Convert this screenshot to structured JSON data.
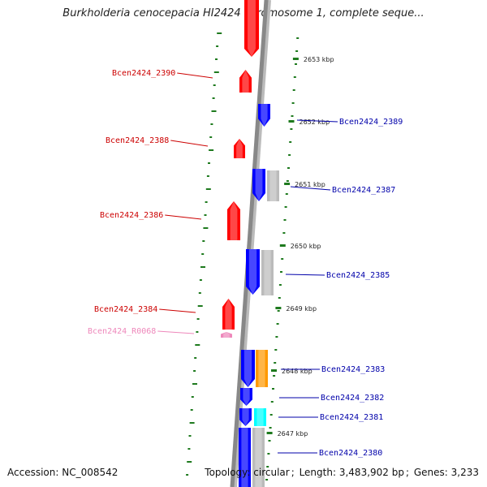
{
  "title": "Burkholderia cenocepacia HI2424 chromosome 1, complete seque...",
  "footer": {
    "accession_label": "Accession:",
    "accession": "NC_008542",
    "topology_label": "Topology:",
    "topology": "circular",
    "length_label": "Length:",
    "length": "3,483,902 bp",
    "genes_label": "Genes:",
    "genes": "3,233"
  },
  "colors": {
    "forward_gene": "#ff0000",
    "reverse_gene": "#0000ff",
    "forward_label": "#cc0000",
    "reverse_label": "#0000aa",
    "rna_feature": "#ee88bb",
    "rna_label": "#ee88bb",
    "gray_feature": "#bbbbbb",
    "orange_feature": "#ff9900",
    "cyan_feature": "#00ffff",
    "tick": "#1e7a1e",
    "backbone": "#888888"
  },
  "tick_labels": [
    "2653 kbp",
    "2652 kbp",
    "2651 kbp",
    "2650 kbp",
    "2649 kbp",
    "2648 kbp",
    "2647 kbp"
  ],
  "forward_labels": [
    "Bcen2424_2390",
    "Bcen2424_2388",
    "Bcen2424_2386",
    "Bcen2424_2384",
    "Bcen2424_R0068"
  ],
  "reverse_labels": [
    "Bcen2424_2389",
    "Bcen2424_2387",
    "Bcen2424_2385",
    "Bcen2424_2383",
    "Bcen2424_2382",
    "Bcen2424_2381",
    "Bcen2424_2380"
  ]
}
